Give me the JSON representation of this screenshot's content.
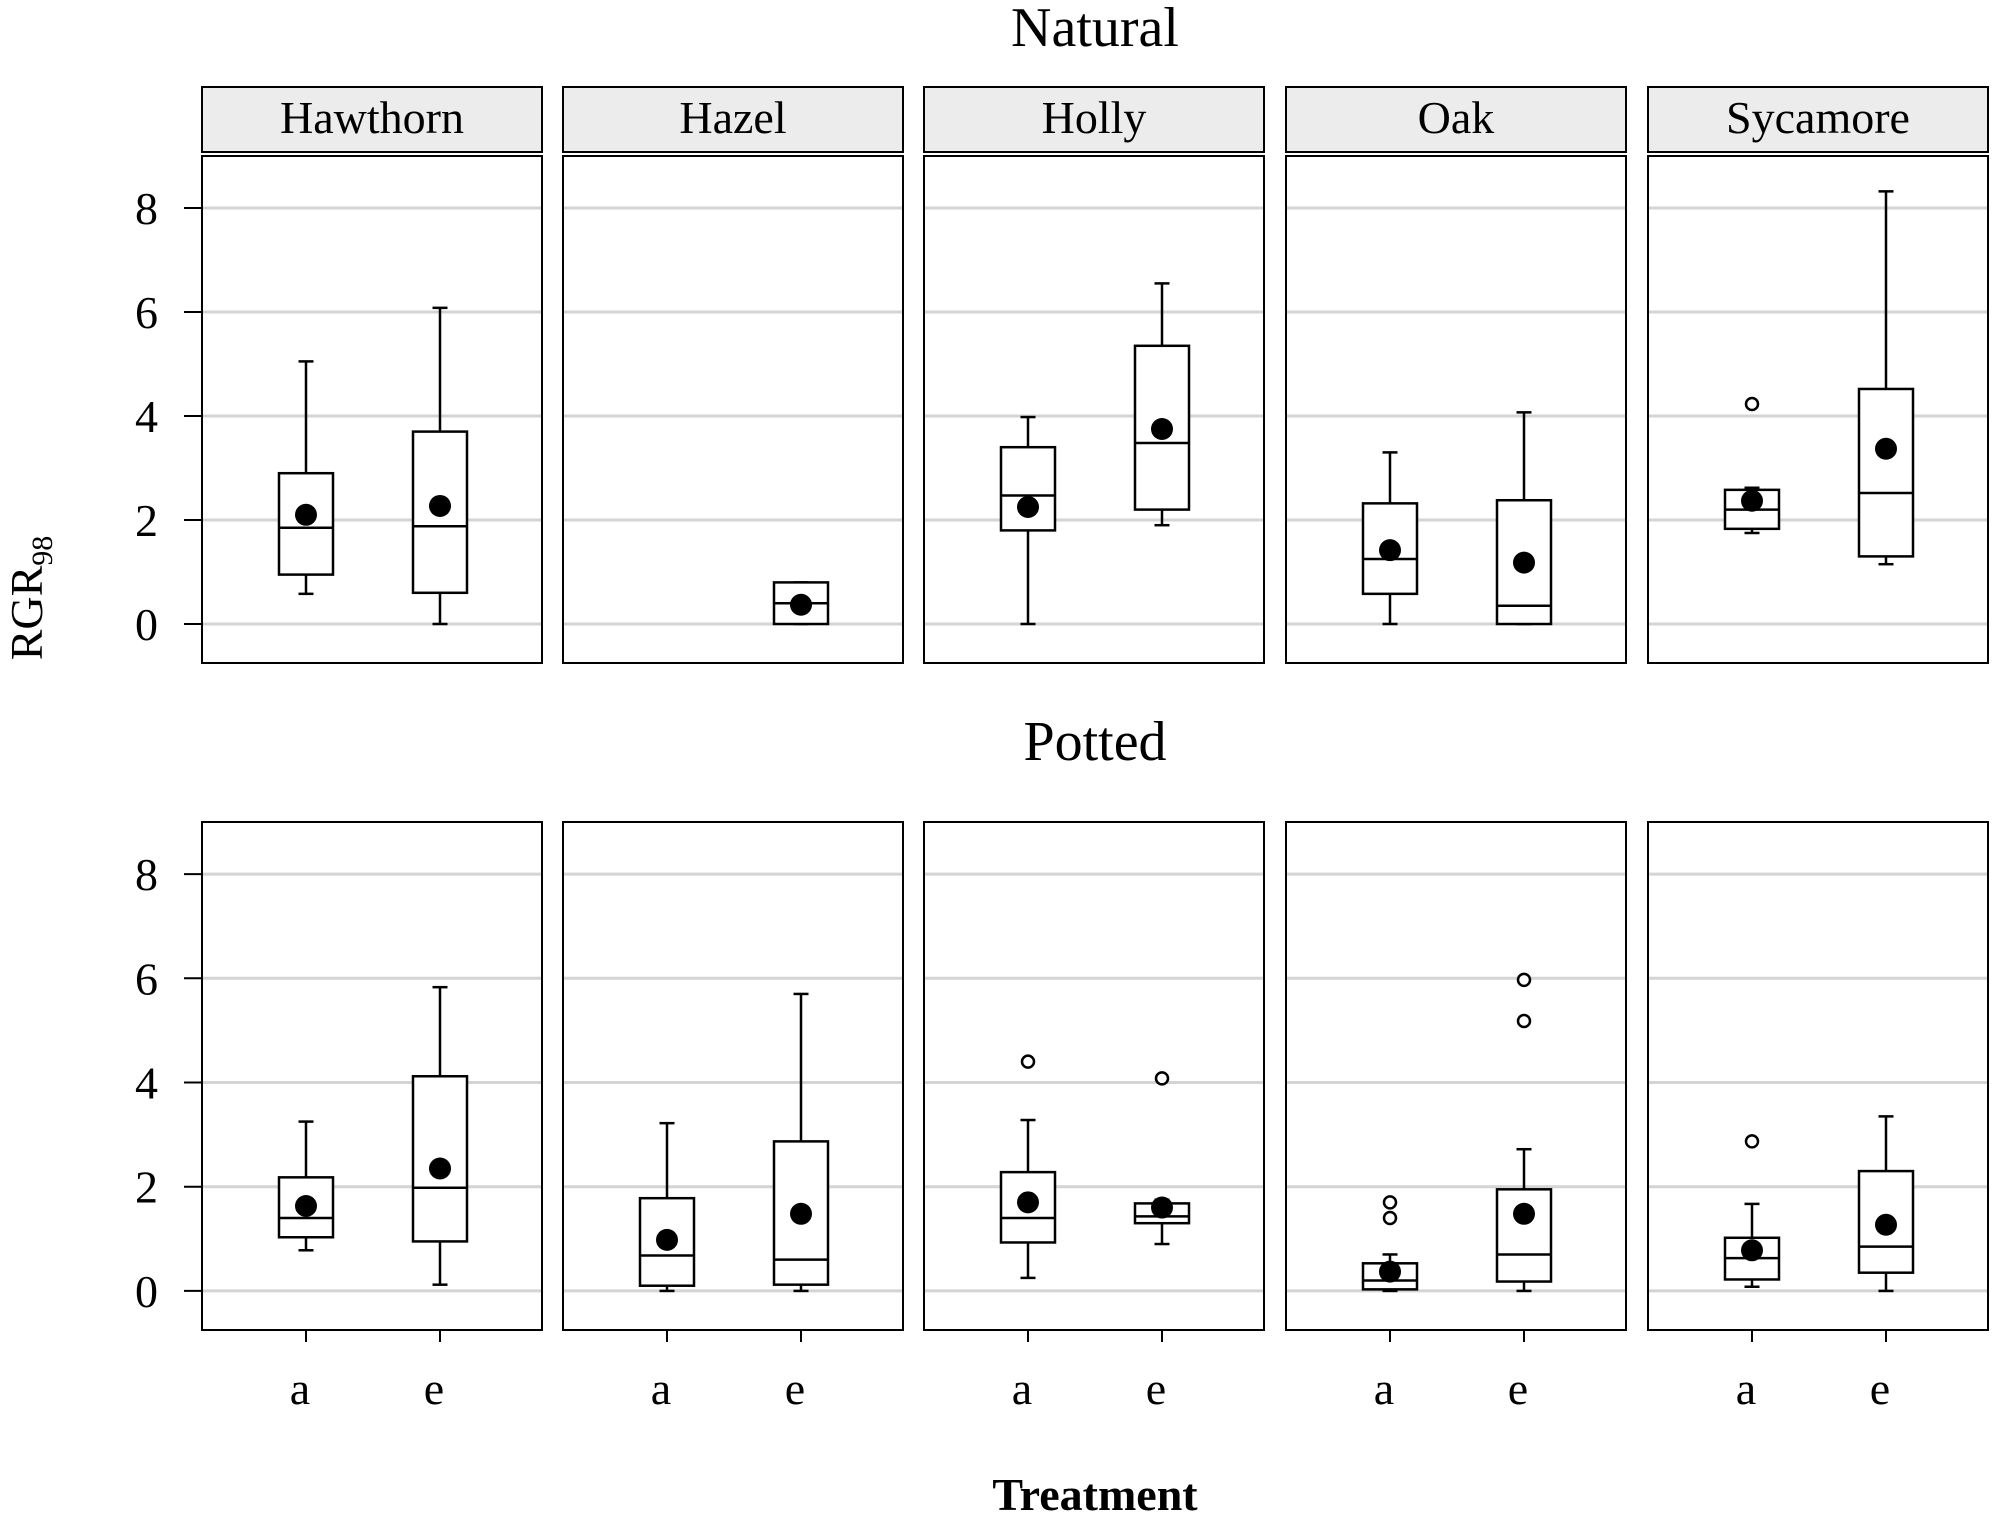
{
  "chart_data": {
    "type": "boxplot",
    "ylabel_main": "RGR",
    "ylabel_sub": "98",
    "xlabel": "Treatment",
    "categories": [
      "a",
      "e"
    ],
    "yticks": [
      0,
      0.2,
      0.4,
      0.6,
      0.8
    ],
    "ytick_labels": [
      "0",
      "2",
      "4",
      "6",
      "8"
    ],
    "ylim": [
      -0.075,
      0.9
    ],
    "grid": true,
    "species": [
      "Hawthorn",
      "Hazel",
      "Holly",
      "Oak",
      "Sycamore"
    ],
    "panels": [
      {
        "title": "Natural",
        "species": [
          {
            "name": "Hawthorn",
            "boxes": [
              {
                "treatment": "a",
                "whisker_low": 0.058,
                "q1": 0.095,
                "median": 0.185,
                "q3": 0.29,
                "whisker_high": 0.505,
                "mean": 0.21,
                "outliers": []
              },
              {
                "treatment": "e",
                "whisker_low": 0.0,
                "q1": 0.06,
                "median": 0.188,
                "q3": 0.37,
                "whisker_high": 0.608,
                "mean": 0.227,
                "outliers": []
              }
            ]
          },
          {
            "name": "Hazel",
            "boxes": [
              {
                "treatment": "e",
                "whisker_low": 0.0,
                "q1": 0.0,
                "median": 0.04,
                "q3": 0.08,
                "whisker_high": 0.08,
                "mean": 0.037,
                "outliers": []
              }
            ]
          },
          {
            "name": "Holly",
            "boxes": [
              {
                "treatment": "a",
                "whisker_low": 0.0,
                "q1": 0.18,
                "median": 0.247,
                "q3": 0.34,
                "whisker_high": 0.398,
                "mean": 0.225,
                "outliers": []
              },
              {
                "treatment": "e",
                "whisker_low": 0.19,
                "q1": 0.22,
                "median": 0.348,
                "q3": 0.535,
                "whisker_high": 0.655,
                "mean": 0.375,
                "outliers": []
              }
            ]
          },
          {
            "name": "Oak",
            "boxes": [
              {
                "treatment": "a",
                "whisker_low": 0.0,
                "q1": 0.058,
                "median": 0.125,
                "q3": 0.232,
                "whisker_high": 0.33,
                "mean": 0.142,
                "outliers": []
              },
              {
                "treatment": "e",
                "whisker_low": 0.0,
                "q1": 0.0,
                "median": 0.035,
                "q3": 0.238,
                "whisker_high": 0.407,
                "mean": 0.118,
                "outliers": []
              }
            ]
          },
          {
            "name": "Sycamore",
            "boxes": [
              {
                "treatment": "a",
                "whisker_low": 0.175,
                "q1": 0.183,
                "median": 0.22,
                "q3": 0.258,
                "whisker_high": 0.262,
                "mean": 0.237,
                "outliers": [
                  0.423
                ]
              },
              {
                "treatment": "e",
                "whisker_low": 0.115,
                "q1": 0.13,
                "median": 0.252,
                "q3": 0.452,
                "whisker_high": 0.832,
                "mean": 0.337,
                "outliers": []
              }
            ]
          }
        ]
      },
      {
        "title": "Potted",
        "species": [
          {
            "name": "Hawthorn",
            "boxes": [
              {
                "treatment": "a",
                "whisker_low": 0.078,
                "q1": 0.103,
                "median": 0.14,
                "q3": 0.218,
                "whisker_high": 0.325,
                "mean": 0.163,
                "outliers": []
              },
              {
                "treatment": "e",
                "whisker_low": 0.012,
                "q1": 0.095,
                "median": 0.198,
                "q3": 0.412,
                "whisker_high": 0.583,
                "mean": 0.235,
                "outliers": []
              }
            ]
          },
          {
            "name": "Hazel",
            "boxes": [
              {
                "treatment": "a",
                "whisker_low": 0.0,
                "q1": 0.01,
                "median": 0.068,
                "q3": 0.178,
                "whisker_high": 0.322,
                "mean": 0.098,
                "outliers": []
              },
              {
                "treatment": "e",
                "whisker_low": 0.0,
                "q1": 0.012,
                "median": 0.06,
                "q3": 0.287,
                "whisker_high": 0.57,
                "mean": 0.148,
                "outliers": []
              }
            ]
          },
          {
            "name": "Holly",
            "boxes": [
              {
                "treatment": "a",
                "whisker_low": 0.025,
                "q1": 0.093,
                "median": 0.14,
                "q3": 0.228,
                "whisker_high": 0.328,
                "mean": 0.17,
                "outliers": [
                  0.44
                ]
              },
              {
                "treatment": "e",
                "whisker_low": 0.09,
                "q1": 0.13,
                "median": 0.143,
                "q3": 0.168,
                "whisker_high": 0.175,
                "mean": 0.16,
                "outliers": [
                  0.408
                ]
              }
            ]
          },
          {
            "name": "Oak",
            "boxes": [
              {
                "treatment": "a",
                "whisker_low": 0.0,
                "q1": 0.003,
                "median": 0.02,
                "q3": 0.053,
                "whisker_high": 0.07,
                "mean": 0.037,
                "outliers": [
                  0.14,
                  0.17
                ]
              },
              {
                "treatment": "e",
                "whisker_low": 0.0,
                "q1": 0.018,
                "median": 0.07,
                "q3": 0.195,
                "whisker_high": 0.272,
                "mean": 0.148,
                "outliers": [
                  0.518,
                  0.597
                ]
              }
            ]
          },
          {
            "name": "Sycamore",
            "boxes": [
              {
                "treatment": "a",
                "whisker_low": 0.008,
                "q1": 0.022,
                "median": 0.063,
                "q3": 0.102,
                "whisker_high": 0.167,
                "mean": 0.078,
                "outliers": [
                  0.287
                ]
              },
              {
                "treatment": "e",
                "whisker_low": 0.0,
                "q1": 0.035,
                "median": 0.085,
                "q3": 0.23,
                "whisker_high": 0.335,
                "mean": 0.127,
                "outliers": []
              }
            ]
          }
        ]
      }
    ]
  }
}
